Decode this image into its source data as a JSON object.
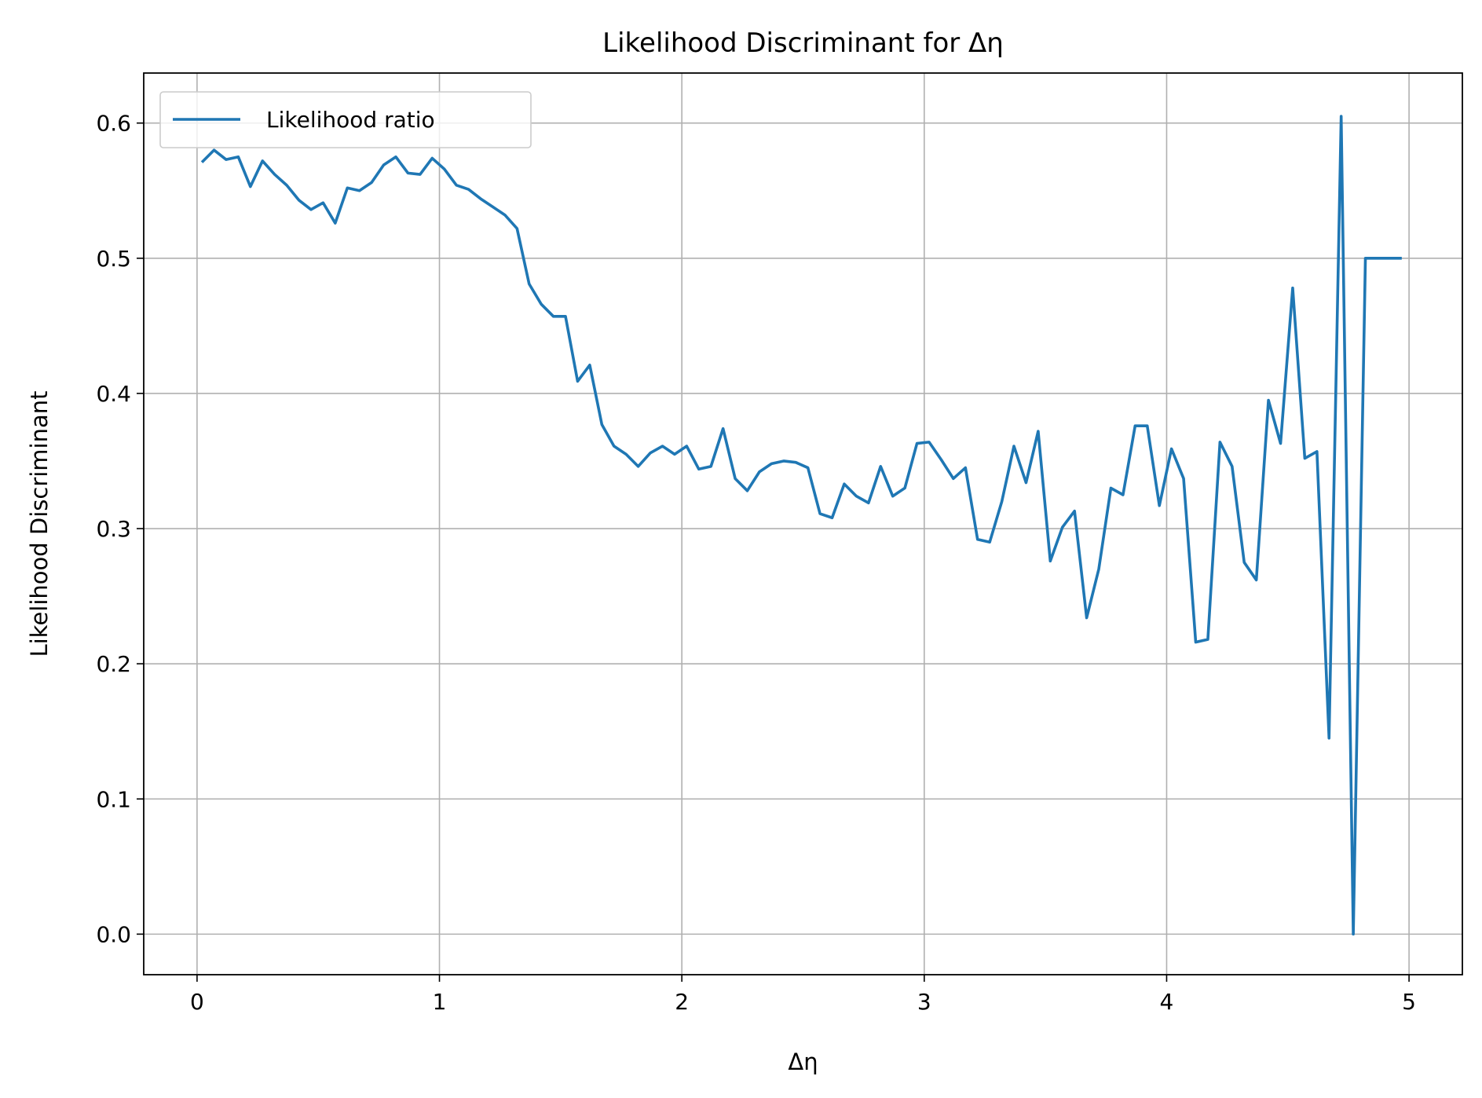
{
  "chart_data": {
    "type": "line",
    "title": "Likelihood Discriminant for Δη",
    "xlabel": "Δη",
    "ylabel": "Likelihood Discriminant",
    "xlim": [
      -0.22,
      5.22
    ],
    "ylim": [
      -0.03,
      0.637
    ],
    "xticks": [
      0,
      1,
      2,
      3,
      4,
      5
    ],
    "yticks": [
      0.0,
      0.1,
      0.2,
      0.3,
      0.4,
      0.5,
      0.6
    ],
    "xtick_labels": [
      "0",
      "1",
      "2",
      "3",
      "4",
      "5"
    ],
    "ytick_labels": [
      "0.0",
      "0.1",
      "0.2",
      "0.3",
      "0.4",
      "0.5",
      "0.6"
    ],
    "grid": true,
    "legend_position": "top-left",
    "series": [
      {
        "name": "Likelihood ratio",
        "color": "#1f77b4",
        "x": [
          0.02,
          0.07,
          0.12,
          0.17,
          0.22,
          0.27,
          0.32,
          0.37,
          0.42,
          0.47,
          0.52,
          0.57,
          0.62,
          0.67,
          0.72,
          0.77,
          0.82,
          0.87,
          0.92,
          0.97,
          1.02,
          1.07,
          1.12,
          1.17,
          1.22,
          1.27,
          1.32,
          1.37,
          1.42,
          1.47,
          1.52,
          1.57,
          1.62,
          1.67,
          1.72,
          1.77,
          1.82,
          1.87,
          1.92,
          1.97,
          2.02,
          2.07,
          2.12,
          2.17,
          2.22,
          2.27,
          2.32,
          2.37,
          2.42,
          2.47,
          2.52,
          2.57,
          2.62,
          2.67,
          2.72,
          2.77,
          2.82,
          2.87,
          2.92,
          2.97,
          3.02,
          3.07,
          3.12,
          3.17,
          3.22,
          3.27,
          3.32,
          3.37,
          3.42,
          3.47,
          3.52,
          3.57,
          3.62,
          3.67,
          3.72,
          3.77,
          3.82,
          3.87,
          3.92,
          3.97,
          4.02,
          4.07,
          4.12,
          4.17,
          4.22,
          4.27,
          4.32,
          4.37,
          4.42,
          4.47,
          4.52,
          4.57,
          4.62,
          4.67,
          4.72,
          4.77,
          4.82,
          4.87,
          4.92,
          4.97
        ],
        "y": [
          0.571,
          0.58,
          0.573,
          0.575,
          0.553,
          0.572,
          0.562,
          0.554,
          0.543,
          0.536,
          0.541,
          0.526,
          0.552,
          0.55,
          0.556,
          0.569,
          0.575,
          0.563,
          0.562,
          0.574,
          0.566,
          0.554,
          0.551,
          0.544,
          0.538,
          0.532,
          0.522,
          0.481,
          0.466,
          0.457,
          0.457,
          0.409,
          0.421,
          0.377,
          0.361,
          0.355,
          0.346,
          0.356,
          0.361,
          0.355,
          0.361,
          0.344,
          0.346,
          0.374,
          0.337,
          0.328,
          0.342,
          0.348,
          0.35,
          0.349,
          0.345,
          0.311,
          0.308,
          0.333,
          0.324,
          0.319,
          0.346,
          0.324,
          0.33,
          0.363,
          0.364,
          0.351,
          0.337,
          0.345,
          0.292,
          0.29,
          0.32,
          0.361,
          0.334,
          0.372,
          0.276,
          0.301,
          0.313,
          0.234,
          0.27,
          0.33,
          0.325,
          0.376,
          0.376,
          0.317,
          0.359,
          0.337,
          0.216,
          0.218,
          0.364,
          0.346,
          0.275,
          0.262,
          0.395,
          0.363,
          0.478,
          0.352,
          0.357,
          0.145,
          0.605,
          0.0,
          0.5,
          0.5,
          0.5,
          0.5
        ]
      }
    ]
  }
}
